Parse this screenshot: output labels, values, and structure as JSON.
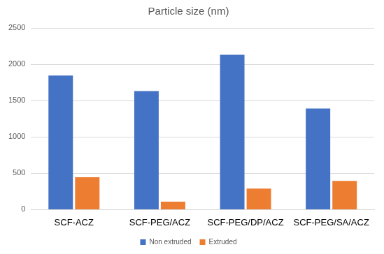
{
  "chart_data": {
    "type": "bar",
    "title": "Particle size (nm)",
    "categories": [
      "SCF-ACZ",
      "SCF-PEG/ACZ",
      "SCF-PEG/DP/ACZ",
      "SCF-PEG/SA/ACZ"
    ],
    "series": [
      {
        "name": "Non extruded",
        "color": "#4472c4",
        "values": [
          1845,
          1630,
          2130,
          1390
        ]
      },
      {
        "name": "Extruded",
        "color": "#ed7d31",
        "values": [
          445,
          110,
          290,
          395
        ]
      }
    ],
    "ylim": [
      0,
      2500
    ],
    "yticks": [
      0,
      500,
      1000,
      1500,
      2000,
      2500
    ],
    "grid": true,
    "legend": "bottom"
  }
}
